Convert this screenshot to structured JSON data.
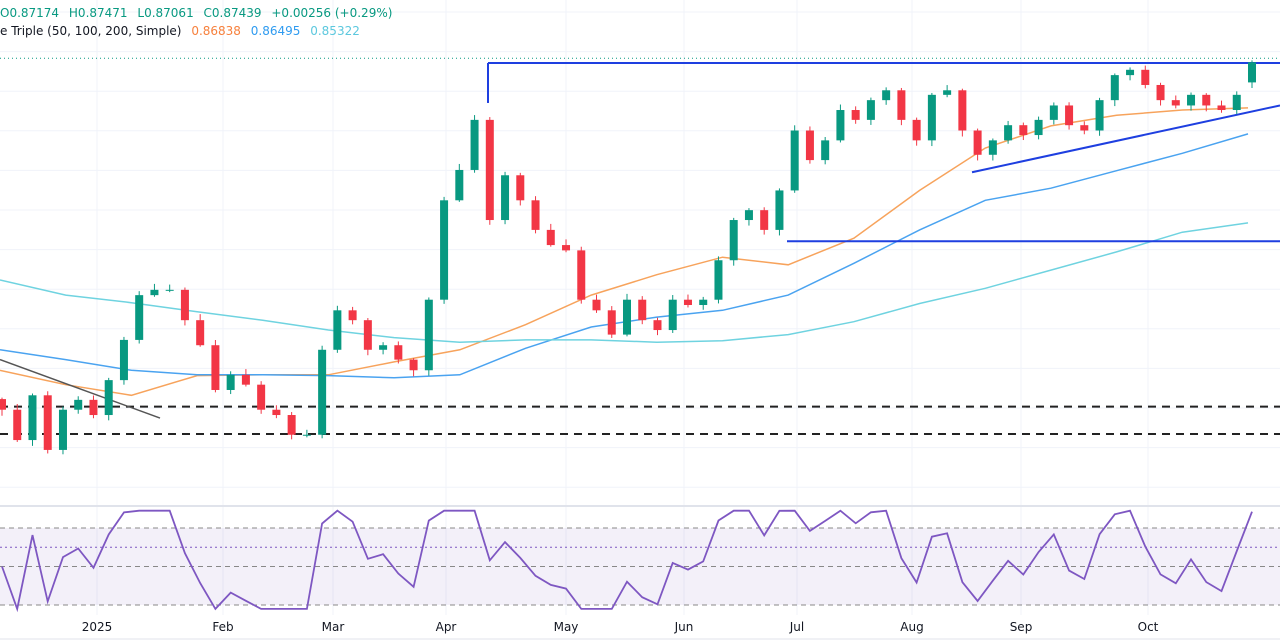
{
  "legend": {
    "ohlc": {
      "open": "O0.87174",
      "high": "H0.87471",
      "low": "L0.87061",
      "close": "C0.87439",
      "change": "+0.00256 (+0.29%)"
    },
    "indicator_name": "e Triple (50, 100, 200, Simple)",
    "ma_values": [
      "0.86838",
      "0.86495",
      "0.85322"
    ]
  },
  "colors": {
    "up": "#089981",
    "down": "#f23645",
    "ma50": "#f7a35c",
    "ma100": "#4aa3f0",
    "ma200": "#6fd3e0",
    "rsi": "#7e57c2",
    "levels": "#1e3fe0"
  },
  "chart_data": {
    "type": "candlestick",
    "ylim": [
      0.8167,
      0.8826
    ],
    "x_tick_labels": [
      "2025",
      "Feb",
      "Mar",
      "Apr",
      "May",
      "Jun",
      "Jul",
      "Aug",
      "Sep",
      "Oct"
    ],
    "closes": [
      0.8286,
      0.8246,
      0.8305,
      0.8233,
      0.8286,
      0.8299,
      0.8279,
      0.8325,
      0.8378,
      0.8437,
      0.8444,
      0.8444,
      0.8404,
      0.8371,
      0.8312,
      0.8332,
      0.8319,
      0.8286,
      0.8279,
      0.8253,
      0.8253,
      0.8365,
      0.8417,
      0.8404,
      0.8365,
      0.8371,
      0.8352,
      0.8338,
      0.8431,
      0.8562,
      0.8602,
      0.8668,
      0.8536,
      0.8595,
      0.8562,
      0.8523,
      0.8503,
      0.8496,
      0.8431,
      0.8417,
      0.8385,
      0.8431,
      0.8404,
      0.8391,
      0.8431,
      0.8424,
      0.8431,
      0.8483,
      0.8536,
      0.8549,
      0.8523,
      0.8575,
      0.8654,
      0.8615,
      0.8641,
      0.8681,
      0.8668,
      0.8694,
      0.8707,
      0.8668,
      0.8641,
      0.8701,
      0.8707,
      0.8654,
      0.8622,
      0.8641,
      0.8661,
      0.8648,
      0.8668,
      0.8687,
      0.8661,
      0.8654,
      0.8694,
      0.8727,
      0.8734,
      0.8714,
      0.8694,
      0.8687,
      0.8701,
      0.8687,
      0.8681,
      0.8701,
      0.87439
    ],
    "last_open": 0.87174,
    "moving_averages": [
      {
        "name": "SMA 50",
        "values": [
          0.8338,
          0.8319,
          0.8305,
          0.8331,
          0.8332,
          0.8332,
          0.8349,
          0.8365,
          0.8398,
          0.8437,
          0.8464,
          0.8487,
          0.8477,
          0.8512,
          0.8575,
          0.8631,
          0.866,
          0.8674,
          0.8681,
          0.86838
        ]
      },
      {
        "name": "SMA 100",
        "values": [
          0.8365,
          0.8352,
          0.8338,
          0.8332,
          0.8332,
          0.8331,
          0.8328,
          0.8332,
          0.8367,
          0.8395,
          0.8408,
          0.8417,
          0.8437,
          0.8479,
          0.8523,
          0.8562,
          0.8578,
          0.8601,
          0.8624,
          0.86495
        ]
      },
      {
        "name": "SMA 200",
        "values": [
          0.8457,
          0.8437,
          0.8427,
          0.8415,
          0.8404,
          0.8391,
          0.8381,
          0.8375,
          0.8378,
          0.8378,
          0.8375,
          0.8377,
          0.8385,
          0.8402,
          0.8426,
          0.8446,
          0.847,
          0.8494,
          0.852,
          0.85322
        ]
      }
    ],
    "levels": {
      "resistance": 0.8743,
      "support": 0.8508,
      "dashed": [
        0.829,
        0.8254
      ],
      "trendline": [
        0.8599,
        0.8687
      ],
      "downtrend": [
        0.8352,
        0.8275
      ]
    },
    "rsi": {
      "levels": [
        70,
        60,
        50,
        30
      ],
      "ylim": [
        20,
        80
      ]
    }
  }
}
